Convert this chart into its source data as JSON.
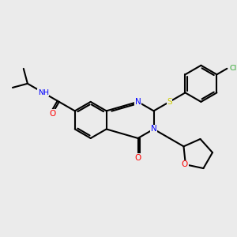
{
  "background_color": "#ebebeb",
  "atom_colors": {
    "N": "#0000ff",
    "O": "#ff0000",
    "S": "#cccc00",
    "Cl": "#33aa33",
    "C": "#000000"
  },
  "bond_lw": 1.5,
  "figsize": [
    3.0,
    3.0
  ],
  "dpi": 100,
  "BL": 24
}
